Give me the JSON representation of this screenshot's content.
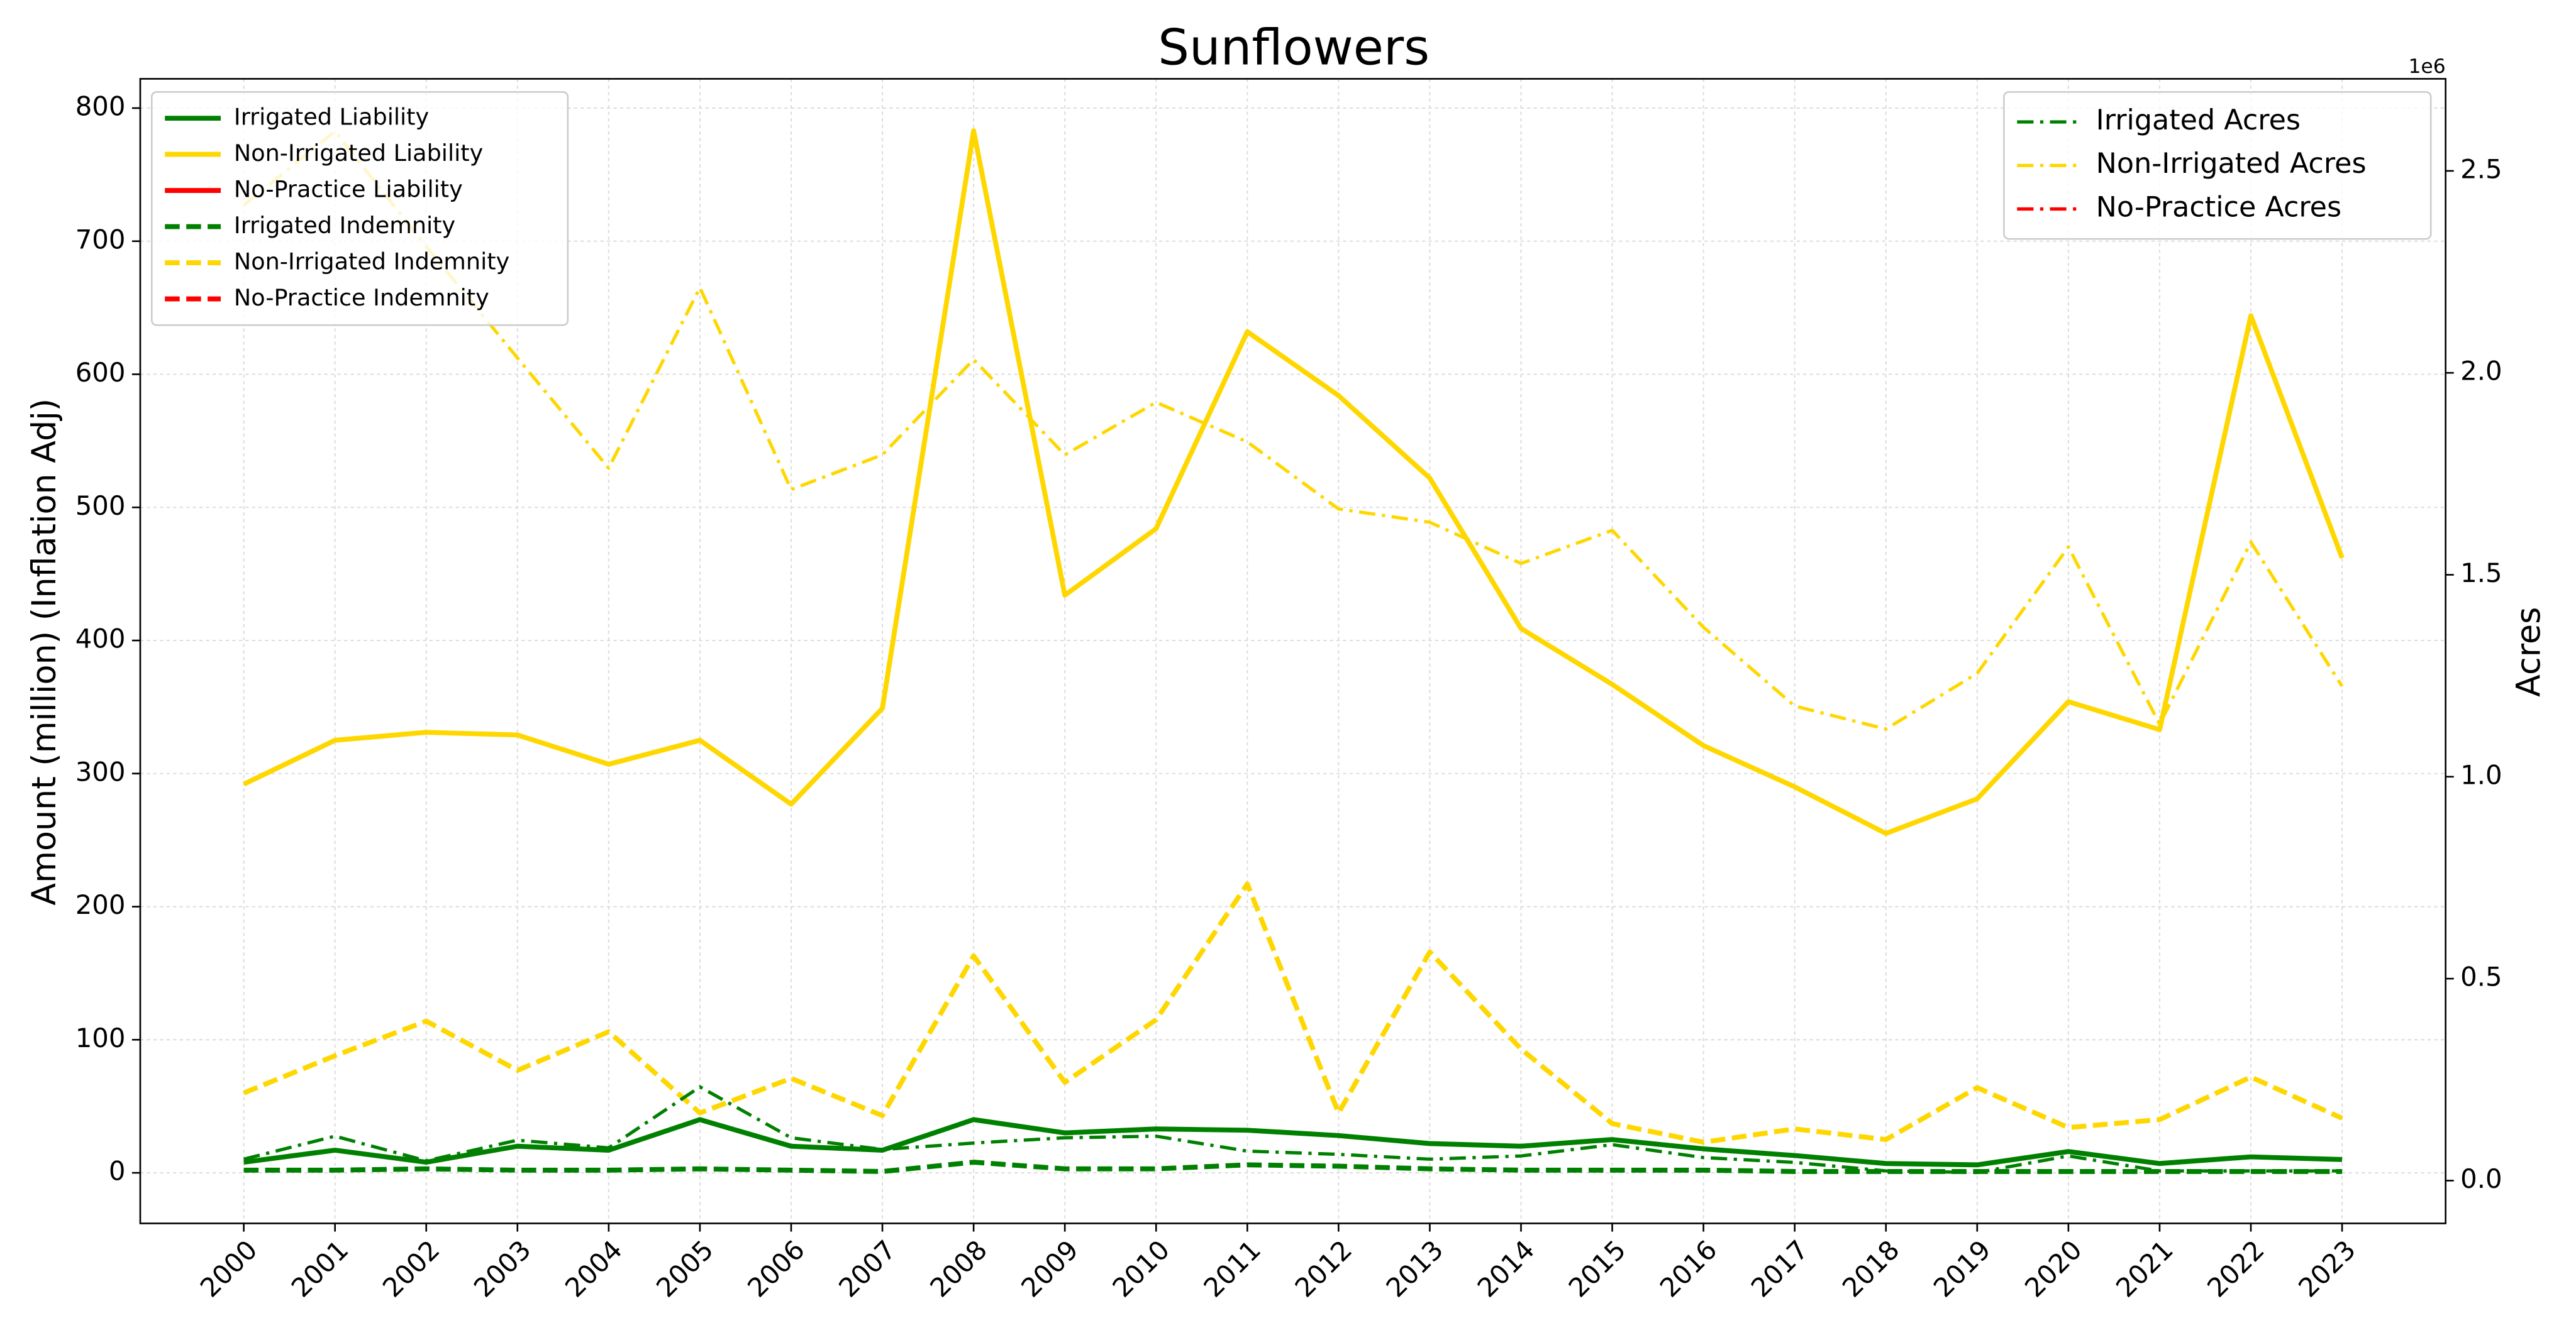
{
  "chart_data": {
    "type": "line",
    "title": "Sunflowers",
    "ylabel": "Amount (million) (Inflation Adj)",
    "y2label": "Acres",
    "y2_offset_label": "1e6",
    "categories": [
      "2000",
      "2001",
      "2002",
      "2003",
      "2004",
      "2005",
      "2006",
      "2007",
      "2008",
      "2009",
      "2010",
      "2011",
      "2012",
      "2013",
      "2014",
      "2015",
      "2016",
      "2017",
      "2018",
      "2019",
      "2020",
      "2021",
      "2022",
      "2023"
    ],
    "ylim": [
      -38,
      822
    ],
    "yticks": [
      0,
      100,
      200,
      300,
      400,
      500,
      600,
      700,
      800
    ],
    "y2lim": [
      -106000,
      2728000
    ],
    "y2ticks": [
      {
        "value": 0,
        "label": "0.0"
      },
      {
        "value": 500000,
        "label": "0.5"
      },
      {
        "value": 1000000,
        "label": "1.0"
      },
      {
        "value": 1500000,
        "label": "1.5"
      },
      {
        "value": 2000000,
        "label": "2.0"
      },
      {
        "value": 2500000,
        "label": "2.5"
      }
    ],
    "grid": true,
    "legend": "upper left",
    "y2_legend": "upper right",
    "series": [
      {
        "name": "Irrigated Liability",
        "color": "#008000",
        "linestyle": "solid",
        "axis": "y",
        "values": [
          8,
          17,
          8,
          20,
          17,
          40,
          20,
          17,
          40,
          30,
          33,
          32,
          28,
          22,
          20,
          25,
          18,
          13,
          7,
          6,
          16,
          7,
          12,
          10
        ]
      },
      {
        "name": "Non-Irrigated Liability",
        "color": "#FFD700",
        "linestyle": "solid",
        "axis": "y",
        "values": [
          292,
          325,
          331,
          329,
          307,
          325,
          277,
          349,
          783,
          434,
          484,
          632,
          584,
          522,
          409,
          367,
          321,
          290,
          255,
          281,
          354,
          333,
          644,
          462
        ]
      },
      {
        "name": "No-Practice Liability",
        "color": "#FF0000",
        "linestyle": "solid",
        "axis": "y",
        "values": [
          null,
          null,
          null,
          null,
          null,
          null,
          null,
          null,
          null,
          null,
          null,
          null,
          null,
          null,
          null,
          null,
          null,
          null,
          null,
          null,
          null,
          null,
          null,
          null
        ]
      },
      {
        "name": "Irrigated Indemnity",
        "color": "#008000",
        "linestyle": "dashed",
        "axis": "y",
        "values": [
          2,
          2,
          3,
          2,
          2,
          3,
          2,
          1,
          8,
          3,
          3,
          6,
          5,
          3,
          2,
          2,
          2,
          1,
          1,
          1,
          1,
          1,
          1,
          1
        ]
      },
      {
        "name": "Non-Irrigated Indemnity",
        "color": "#FFD700",
        "linestyle": "dashed",
        "axis": "y",
        "values": [
          60,
          88,
          114,
          77,
          106,
          45,
          71,
          43,
          163,
          68,
          115,
          217,
          45,
          166,
          93,
          37,
          23,
          33,
          25,
          64,
          34,
          40,
          72,
          41
        ]
      },
      {
        "name": "No-Practice Indemnity",
        "color": "#FF0000",
        "linestyle": "dashed",
        "axis": "y",
        "values": [
          null,
          null,
          null,
          null,
          null,
          null,
          null,
          null,
          null,
          null,
          null,
          null,
          null,
          null,
          null,
          null,
          null,
          null,
          null,
          null,
          null,
          null,
          null,
          null
        ]
      },
      {
        "name": "Irrigated Acres",
        "color": "#008000",
        "linestyle": "dashdot",
        "axis": "y2",
        "values": [
          53000,
          110000,
          49000,
          100000,
          81000,
          232000,
          106000,
          77000,
          93000,
          106000,
          110000,
          73000,
          65000,
          53000,
          61000,
          89000,
          57000,
          45000,
          24000,
          20000,
          61000,
          24000,
          24000,
          24000
        ]
      },
      {
        "name": "Non-Irrigated Acres",
        "color": "#FFD700",
        "linestyle": "dashdot",
        "axis": "y2",
        "values": [
          2415000,
          2598000,
          2313000,
          2037000,
          1764000,
          2211000,
          1711000,
          1797000,
          2033000,
          1797000,
          1927000,
          1829000,
          1663000,
          1630000,
          1528000,
          1610000,
          1370000,
          1175000,
          1118000,
          1256000,
          1569000,
          1130000,
          1581000,
          1224000
        ]
      },
      {
        "name": "No-Practice Acres",
        "color": "#FF0000",
        "linestyle": "dashdot",
        "axis": "y2",
        "values": [
          null,
          null,
          null,
          null,
          null,
          null,
          null,
          null,
          null,
          null,
          null,
          null,
          null,
          null,
          null,
          null,
          null,
          null,
          null,
          null,
          null,
          null,
          null,
          null
        ]
      }
    ]
  }
}
